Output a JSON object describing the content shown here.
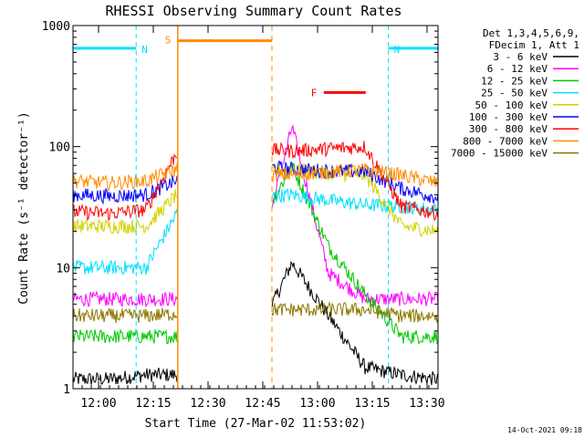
{
  "chart_data": {
    "type": "line",
    "title": "RHESSI Observing Summary Count Rates",
    "xlabel": "Start Time (27-Mar-02 11:53:02)",
    "ylabel": "Count Rate (s⁻¹ detector⁻¹)",
    "yscale": "log",
    "ylim": [
      1,
      1000
    ],
    "xlim_minutes_after_1153": [
      0,
      100
    ],
    "x_ticks": [
      "12:00",
      "12:15",
      "12:30",
      "12:45",
      "13:00",
      "13:15",
      "13:30"
    ],
    "x_tick_minutes": [
      7,
      22,
      37,
      52,
      67,
      82,
      97
    ],
    "y_ticks": [
      "1",
      "10",
      "100",
      "1000"
    ],
    "y_tick_values": [
      1,
      10,
      100,
      1000
    ],
    "legend_header": [
      "Det 1,3,4,5,6,9,",
      "FDecim 1, Att 1"
    ],
    "timestamp": "14-Oct-2021 09:18",
    "gap_minutes": [
      28.7,
      54.5
    ],
    "series": [
      {
        "name": "3 - 6 keV",
        "color": "#000000",
        "values": [
          1.2,
          1.2,
          1.3,
          1.3,
          1.4,
          2.5,
          11,
          4,
          1.5,
          1.3,
          1.2
        ]
      },
      {
        "name": "6 - 12 keV",
        "color": "#ff00ff",
        "values": [
          5.5,
          5.5,
          5.5,
          5.5,
          6,
          9,
          145,
          9,
          5.5,
          5.5,
          5.5
        ]
      },
      {
        "name": "12 - 25 keV",
        "color": "#00c800",
        "values": [
          2.7,
          2.7,
          2.7,
          2.7,
          6,
          20,
          70,
          15,
          6,
          2.7,
          2.7
        ]
      },
      {
        "name": "25 - 50 keV",
        "color": "#00e0ff",
        "values": [
          10,
          10,
          10,
          34,
          36,
          38,
          40,
          36,
          33,
          32,
          30
        ]
      },
      {
        "name": "50 - 100 keV",
        "color": "#d2d200",
        "values": [
          22,
          22,
          22,
          45,
          55,
          60,
          65,
          60,
          58,
          22,
          20
        ]
      },
      {
        "name": "100 - 300 keV",
        "color": "#0000ff",
        "values": [
          40,
          39,
          40,
          55,
          75,
          70,
          65,
          63,
          62,
          45,
          38
        ]
      },
      {
        "name": "300 - 800 keV",
        "color": "#ff0000",
        "values": [
          29,
          28,
          30,
          110,
          105,
          95,
          92,
          96,
          100,
          32,
          28
        ]
      },
      {
        "name": "800 - 7000 keV",
        "color": "#ff8c00",
        "values": [
          52,
          50,
          52,
          68,
          65,
          60,
          58,
          62,
          64,
          58,
          50
        ]
      },
      {
        "name": "7000 - 15000 keV",
        "color": "#8c7800",
        "values": [
          4,
          4,
          4,
          4.2,
          4.5,
          4.5,
          4.5,
          4.5,
          4.5,
          4,
          4
        ]
      }
    ],
    "annotations": [
      {
        "label": "N",
        "color": "#00e0ff",
        "start_min": 0,
        "end_min": 17.3,
        "level": 650
      },
      {
        "label": "N",
        "color": "#00e0ff",
        "start_min": 86.4,
        "end_min": 100,
        "level": 650
      },
      {
        "label": "S",
        "color": "#ff8c00",
        "start_min": 28.7,
        "end_min": 54.5,
        "level": 750
      },
      {
        "label": "F",
        "color": "#ff0000",
        "start_min": 68.7,
        "end_min": 80.2,
        "level": 280
      }
    ]
  }
}
